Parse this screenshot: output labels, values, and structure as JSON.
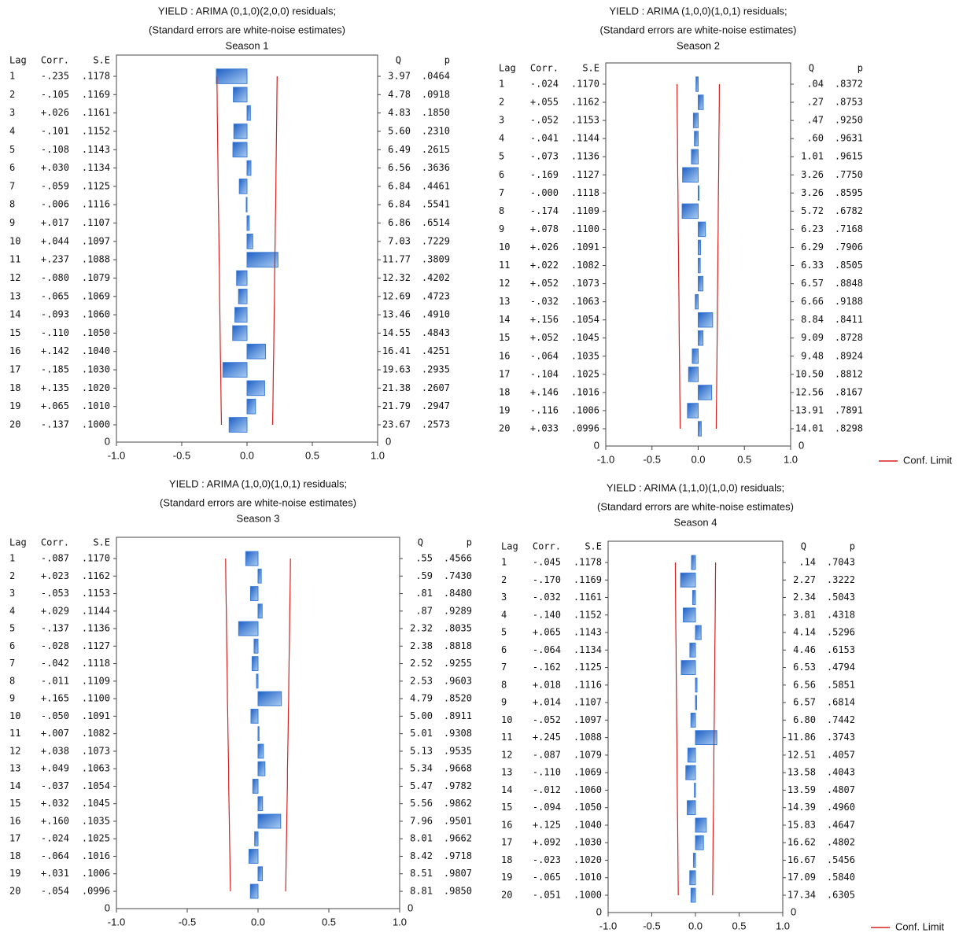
{
  "chart_data": [
    {
      "type": "bar",
      "orientation": "horizontal",
      "title": "YIELD    : ARIMA (0,1,0)(2,0,0) residuals;",
      "subtitle": "(Standard errors are white-noise estimates)",
      "season": "Season 1",
      "headers": {
        "lag": "Lag",
        "corr": "Corr.",
        "se": "S.E",
        "q": "Q",
        "p": "p"
      },
      "categories": [
        1,
        2,
        3,
        4,
        5,
        6,
        7,
        8,
        9,
        10,
        11,
        12,
        13,
        14,
        15,
        16,
        17,
        18,
        19,
        20
      ],
      "values": [
        -0.235,
        -0.105,
        0.026,
        -0.101,
        -0.108,
        0.03,
        -0.059,
        -0.006,
        0.017,
        0.044,
        0.237,
        -0.08,
        -0.065,
        -0.093,
        -0.11,
        0.142,
        -0.185,
        0.135,
        0.065,
        -0.137
      ],
      "value_labels": [
        "-.235",
        "-.105",
        "+.026",
        "-.101",
        "-.108",
        "+.030",
        "-.059",
        "-.006",
        "+.017",
        "+.044",
        "+.237",
        "-.080",
        "-.065",
        "-.093",
        "-.110",
        "+.142",
        "-.185",
        "+.135",
        "+.065",
        "-.137"
      ],
      "color": "#3a7bd5",
      "se": [
        ".1178",
        ".1169",
        ".1161",
        ".1152",
        ".1143",
        ".1134",
        ".1125",
        ".1116",
        ".1107",
        ".1097",
        ".1088",
        ".1079",
        ".1069",
        ".1060",
        ".1050",
        ".1040",
        ".1030",
        ".1020",
        ".1010",
        ".1000"
      ],
      "q": [
        "3.97",
        "4.78",
        "4.83",
        "5.60",
        "6.49",
        "6.56",
        "6.84",
        "6.84",
        "6.86",
        "7.03",
        "11.77",
        "12.32",
        "12.69",
        "13.46",
        "14.55",
        "16.41",
        "19.63",
        "21.38",
        "21.79",
        "23.67"
      ],
      "p": [
        ".0464",
        ".0918",
        ".1850",
        ".2310",
        ".2615",
        ".3636",
        ".4461",
        ".5541",
        ".6514",
        ".7229",
        ".3809",
        ".4202",
        ".4723",
        ".4910",
        ".4843",
        ".4251",
        ".2935",
        ".2607",
        ".2947",
        ".2573"
      ],
      "conf_limit": {
        "name": "Conf. Limit",
        "color": "#d62020",
        "values": [
          0.231,
          0.229,
          0.228,
          0.226,
          0.224,
          0.222,
          0.221,
          0.219,
          0.217,
          0.215,
          0.213,
          0.211,
          0.21,
          0.208,
          0.206,
          0.204,
          0.202,
          0.2,
          0.198,
          0.196
        ]
      },
      "xlim": [
        -1,
        1
      ],
      "xticks": [
        {
          "value": -1,
          "label": "-1.0"
        },
        {
          "value": -0.5,
          "label": "-0.5"
        },
        {
          "value": 0,
          "label": "0.0"
        },
        {
          "value": 0.5,
          "label": "0.5"
        },
        {
          "value": 1,
          "label": "1.0"
        }
      ],
      "yticks": [
        0
      ]
    },
    {
      "type": "bar",
      "orientation": "horizontal",
      "title": "YIELD    : ARIMA (1,0,0)(1,0,1) residuals;",
      "subtitle": "(Standard errors are white-noise estimates)",
      "season": "Season 2",
      "headers": {
        "lag": "Lag",
        "corr": "Corr.",
        "se": "S.E",
        "q": "Q",
        "p": "p"
      },
      "categories": [
        1,
        2,
        3,
        4,
        5,
        6,
        7,
        8,
        9,
        10,
        11,
        12,
        13,
        14,
        15,
        16,
        17,
        18,
        19,
        20
      ],
      "values": [
        -0.024,
        0.055,
        -0.052,
        -0.041,
        -0.073,
        -0.169,
        0,
        -0.174,
        0.078,
        0.026,
        0.022,
        0.052,
        -0.032,
        0.156,
        0.052,
        -0.064,
        -0.104,
        0.146,
        -0.116,
        0.033
      ],
      "value_labels": [
        "-.024",
        "+.055",
        "-.052",
        "-.041",
        "-.073",
        "-.169",
        "-.000",
        "-.174",
        "+.078",
        "+.026",
        "+.022",
        "+.052",
        "-.032",
        "+.156",
        "+.052",
        "-.064",
        "-.104",
        "+.146",
        "-.116",
        "+.033"
      ],
      "color": "#3a7bd5",
      "se": [
        ".1170",
        ".1162",
        ".1153",
        ".1144",
        ".1136",
        ".1127",
        ".1118",
        ".1109",
        ".1100",
        ".1091",
        ".1082",
        ".1073",
        ".1063",
        ".1054",
        ".1045",
        ".1035",
        ".1025",
        ".1016",
        ".1006",
        ".0996"
      ],
      "q": [
        ".04",
        ".27",
        ".47",
        ".60",
        "1.01",
        "3.26",
        "3.26",
        "5.72",
        "6.23",
        "6.29",
        "6.33",
        "6.57",
        "6.66",
        "8.84",
        "9.09",
        "9.48",
        "10.50",
        "12.56",
        "13.91",
        "14.01"
      ],
      "p": [
        ".8372",
        ".8753",
        ".9250",
        ".9631",
        ".9615",
        ".7750",
        ".8595",
        ".6782",
        ".7168",
        ".7906",
        ".8505",
        ".8848",
        ".9188",
        ".8411",
        ".8728",
        ".8924",
        ".8812",
        ".8167",
        ".7891",
        ".8298"
      ],
      "conf_limit": {
        "name": "Conf. Limit",
        "color": "#d62020",
        "values": [
          0.229,
          0.228,
          0.226,
          0.224,
          0.223,
          0.221,
          0.219,
          0.217,
          0.216,
          0.214,
          0.212,
          0.21,
          0.208,
          0.207,
          0.205,
          0.203,
          0.201,
          0.199,
          0.197,
          0.195
        ]
      },
      "xlim": [
        -1,
        1
      ],
      "xticks": [
        {
          "value": -1,
          "label": "-1.0"
        },
        {
          "value": -0.5,
          "label": "-0.5"
        },
        {
          "value": 0,
          "label": "0.0"
        },
        {
          "value": 0.5,
          "label": "0.5"
        },
        {
          "value": 1,
          "label": "1.0"
        }
      ],
      "yticks": [
        0
      ],
      "legend": "right"
    },
    {
      "type": "bar",
      "orientation": "horizontal",
      "title": "YIELD    : ARIMA (1,0,0)(1,0,1) residuals;",
      "subtitle": "(Standard errors are white-noise estimates)",
      "season": "Season 3",
      "headers": {
        "lag": "Lag",
        "corr": "Corr.",
        "se": "S.E",
        "q": "Q",
        "p": "p"
      },
      "categories": [
        1,
        2,
        3,
        4,
        5,
        6,
        7,
        8,
        9,
        10,
        11,
        12,
        13,
        14,
        15,
        16,
        17,
        18,
        19,
        20
      ],
      "values": [
        -0.087,
        0.023,
        -0.053,
        0.029,
        -0.137,
        -0.028,
        -0.042,
        -0.011,
        0.165,
        -0.05,
        0.007,
        0.038,
        0.049,
        -0.037,
        0.032,
        0.16,
        -0.024,
        -0.064,
        0.031,
        -0.054
      ],
      "value_labels": [
        "-.087",
        "+.023",
        "-.053",
        "+.029",
        "-.137",
        "-.028",
        "-.042",
        "-.011",
        "+.165",
        "-.050",
        "+.007",
        "+.038",
        "+.049",
        "-.037",
        "+.032",
        "+.160",
        "-.024",
        "-.064",
        "+.031",
        "-.054"
      ],
      "color": "#3a7bd5",
      "se": [
        ".1170",
        ".1162",
        ".1153",
        ".1144",
        ".1136",
        ".1127",
        ".1118",
        ".1109",
        ".1100",
        ".1091",
        ".1082",
        ".1073",
        ".1063",
        ".1054",
        ".1045",
        ".1035",
        ".1025",
        ".1016",
        ".1006",
        ".0996"
      ],
      "q": [
        ".55",
        ".59",
        ".81",
        ".87",
        "2.32",
        "2.38",
        "2.52",
        "2.53",
        "4.79",
        "5.00",
        "5.01",
        "5.13",
        "5.34",
        "5.47",
        "5.56",
        "7.96",
        "8.01",
        "8.42",
        "8.51",
        "8.81"
      ],
      "p": [
        ".4566",
        ".7430",
        ".8480",
        ".9289",
        ".8035",
        ".8818",
        ".9255",
        ".9603",
        ".8520",
        ".8911",
        ".9308",
        ".9535",
        ".9668",
        ".9782",
        ".9862",
        ".9501",
        ".9662",
        ".9718",
        ".9807",
        ".9850"
      ],
      "conf_limit": {
        "name": "Conf. Limit",
        "color": "#d62020",
        "values": [
          0.229,
          0.228,
          0.226,
          0.224,
          0.223,
          0.221,
          0.219,
          0.217,
          0.216,
          0.214,
          0.212,
          0.21,
          0.208,
          0.207,
          0.205,
          0.203,
          0.201,
          0.199,
          0.197,
          0.195
        ]
      },
      "xlim": [
        -1,
        1
      ],
      "xticks": [
        {
          "value": -1,
          "label": "-1.0"
        },
        {
          "value": -0.5,
          "label": "-0.5"
        },
        {
          "value": 0,
          "label": "0.0"
        },
        {
          "value": 0.5,
          "label": "0.5"
        },
        {
          "value": 1,
          "label": "1.0"
        }
      ],
      "yticks": [
        0
      ]
    },
    {
      "type": "bar",
      "orientation": "horizontal",
      "title": "YIELD    : ARIMA (1,1,0)(1,0,0) residuals;",
      "subtitle": "(Standard errors are white-noise estimates)",
      "season": "Season 4",
      "headers": {
        "lag": "Lag",
        "corr": "Corr.",
        "se": "S.E",
        "q": "Q",
        "p": "p"
      },
      "categories": [
        1,
        2,
        3,
        4,
        5,
        6,
        7,
        8,
        9,
        10,
        11,
        12,
        13,
        14,
        15,
        16,
        17,
        18,
        19,
        20
      ],
      "values": [
        -0.045,
        -0.17,
        -0.032,
        -0.14,
        0.065,
        -0.064,
        -0.162,
        0.018,
        0.014,
        -0.052,
        0.245,
        -0.087,
        -0.11,
        -0.012,
        -0.094,
        0.125,
        0.092,
        -0.023,
        -0.065,
        -0.051
      ],
      "value_labels": [
        "-.045",
        "-.170",
        "-.032",
        "-.140",
        "+.065",
        "-.064",
        "-.162",
        "+.018",
        "+.014",
        "-.052",
        "+.245",
        "-.087",
        "-.110",
        "-.012",
        "-.094",
        "+.125",
        "+.092",
        "-.023",
        "-.065",
        "-.051"
      ],
      "color": "#3a7bd5",
      "se": [
        ".1178",
        ".1169",
        ".1161",
        ".1152",
        ".1143",
        ".1134",
        ".1125",
        ".1116",
        ".1107",
        ".1097",
        ".1088",
        ".1079",
        ".1069",
        ".1060",
        ".1050",
        ".1040",
        ".1030",
        ".1020",
        ".1010",
        ".1000"
      ],
      "q": [
        ".14",
        "2.27",
        "2.34",
        "3.81",
        "4.14",
        "4.46",
        "6.53",
        "6.56",
        "6.57",
        "6.80",
        "11.86",
        "12.51",
        "13.58",
        "13.59",
        "14.39",
        "15.83",
        "16.62",
        "16.67",
        "17.09",
        "17.34"
      ],
      "p": [
        ".7043",
        ".3222",
        ".5043",
        ".4318",
        ".5296",
        ".6153",
        ".4794",
        ".5851",
        ".6814",
        ".7442",
        ".3743",
        ".4057",
        ".4043",
        ".4807",
        ".4960",
        ".4647",
        ".4802",
        ".5456",
        ".5840",
        ".6305"
      ],
      "conf_limit": {
        "name": "Conf. Limit",
        "color": "#d62020",
        "values": [
          0.231,
          0.229,
          0.228,
          0.226,
          0.224,
          0.222,
          0.221,
          0.219,
          0.217,
          0.215,
          0.213,
          0.211,
          0.21,
          0.208,
          0.206,
          0.204,
          0.202,
          0.2,
          0.198,
          0.196
        ]
      },
      "xlim": [
        -1,
        1
      ],
      "xticks": [
        {
          "value": -1,
          "label": "-1.0"
        },
        {
          "value": -0.5,
          "label": "-0.5"
        },
        {
          "value": 0,
          "label": "0.0"
        },
        {
          "value": 0.5,
          "label": "0.5"
        },
        {
          "value": 1,
          "label": "1.0"
        }
      ],
      "yticks": [
        0
      ],
      "legend": "right"
    }
  ]
}
